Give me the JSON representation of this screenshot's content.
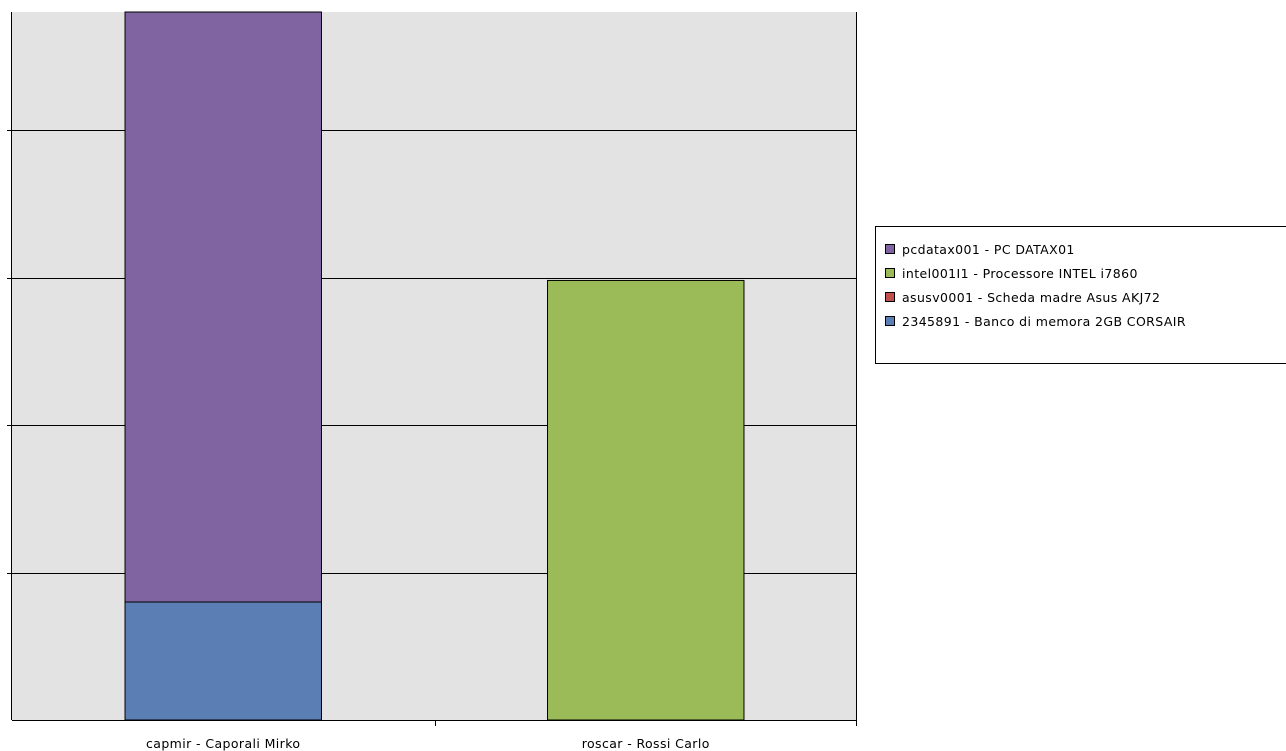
{
  "chart_data": {
    "type": "bar",
    "stacked": true,
    "categories": [
      "capmir - Caporali Mirko",
      "roscar - Rossi Carlo"
    ],
    "ylim": [
      0,
      4.8
    ],
    "y_gridline_step": 1,
    "y_tick_labels_shown": false,
    "grid": true,
    "legend_position": "right",
    "plot_background": "#e3e3e3",
    "series": [
      {
        "name": "2345891 - Banco di memora 2GB CORSAIR",
        "color": "#5b7fb4",
        "values": [
          0.8,
          0
        ]
      },
      {
        "name": "asusv0001 - Scheda madre Asus AKJ72",
        "color": "#c0504d",
        "values": [
          0,
          0
        ]
      },
      {
        "name": "intel001I1 - Processore INTEL i7860",
        "color": "#9bbb59",
        "values": [
          0,
          2.98
        ]
      },
      {
        "name": "pcdatax001 - PC DATAX01",
        "color": "#8064a2",
        "values": [
          4.0,
          0
        ]
      }
    ],
    "legend_order": [
      3,
      2,
      1,
      0
    ]
  }
}
